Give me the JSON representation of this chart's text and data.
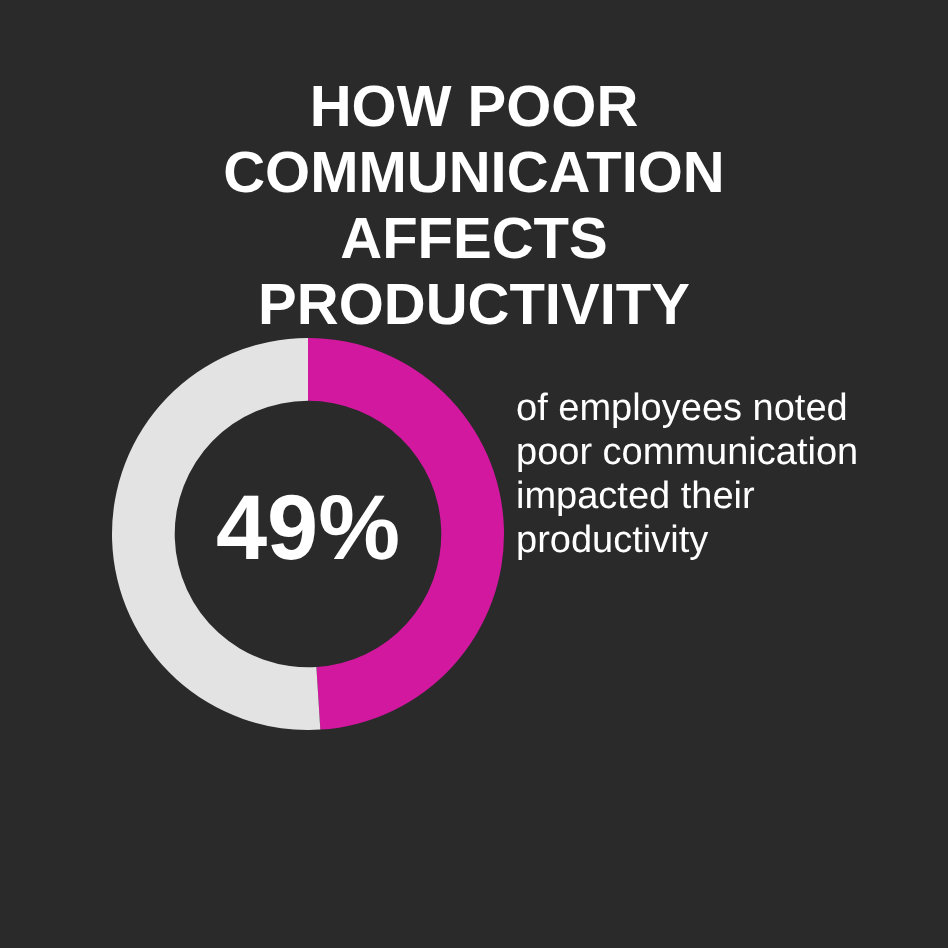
{
  "chart_data": {
    "type": "donut",
    "title": "HOW POOR COMMUNICATION AFFECTS PRODUCTIVITY",
    "categories": [
      null,
      null
    ],
    "values": [
      49,
      51
    ],
    "colors": [
      "#d2189f",
      "#e3e3e3"
    ],
    "value_labels": [
      "49%",
      null
    ],
    "annotations": [
      "of employees noted poor communication impacted their productivity"
    ],
    "legend": false
  }
}
